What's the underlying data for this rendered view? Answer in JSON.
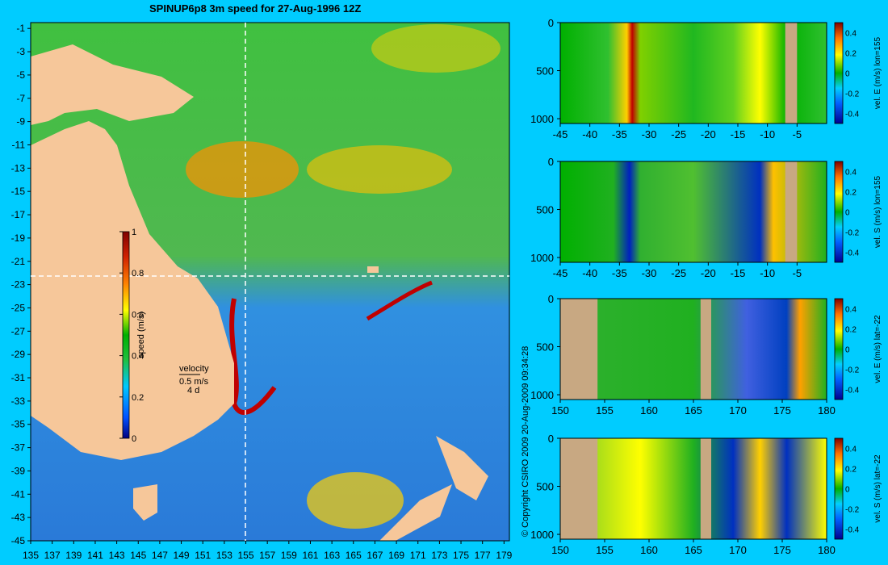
{
  "title": "SPINUP6p8 3m speed for 27-Aug-1996 12Z",
  "copyright": "© Copyright CSIRO 2009   20-Aug-2009 09:34:28",
  "map": {
    "lon_ticks": [
      "135",
      "137",
      "139",
      "141",
      "143",
      "145",
      "147",
      "149",
      "151",
      "153",
      "155",
      "157",
      "159",
      "161",
      "163",
      "165",
      "167",
      "169",
      "171",
      "173",
      "175",
      "177",
      "179"
    ],
    "lat_ticks": [
      "-1",
      "-3",
      "-5",
      "-7",
      "-9",
      "-11",
      "-13",
      "-15",
      "-17",
      "-19",
      "-21",
      "-23",
      "-25",
      "-27",
      "-29",
      "-31",
      "-33",
      "-35",
      "-37",
      "-39",
      "-41",
      "-43",
      "-45"
    ],
    "crosshair_lon": 155,
    "crosshair_lat": -22,
    "colorbar": {
      "label": "speed (m/s)",
      "ticks": [
        "1",
        "0.8",
        "0.6",
        "0.4",
        "0.2",
        "0"
      ],
      "range": [
        0,
        1
      ]
    },
    "velocity_legend": {
      "title": "velocity",
      "speed": "0.5 m/s",
      "period": "4 d"
    },
    "colors": {
      "land": "#f6c79a",
      "background": "#00ccff"
    }
  },
  "panels": [
    {
      "label": "vel. E (m/s) lon=155",
      "x_ticks": [
        "-45",
        "-40",
        "-35",
        "-30",
        "-25",
        "-20",
        "-15",
        "-10",
        "-5"
      ],
      "y_ticks": [
        "0",
        "500",
        "1000"
      ],
      "cbar_ticks": [
        "0.4",
        "0.2",
        "0",
        "-0.2",
        "-0.4"
      ]
    },
    {
      "label": "vel. S (m/s) lon=155",
      "x_ticks": [
        "-45",
        "-40",
        "-35",
        "-30",
        "-25",
        "-20",
        "-15",
        "-10",
        "-5"
      ],
      "y_ticks": [
        "0",
        "500",
        "1000"
      ],
      "cbar_ticks": [
        "0.4",
        "0.2",
        "0",
        "-0.2",
        "-0.4"
      ]
    },
    {
      "label": "vel. E (m/s) lat=-22",
      "x_ticks": [
        "150",
        "155",
        "160",
        "165",
        "170",
        "175",
        "180"
      ],
      "y_ticks": [
        "0",
        "500",
        "1000"
      ],
      "cbar_ticks": [
        "0.4",
        "0.2",
        "0",
        "-0.2",
        "-0.4"
      ]
    },
    {
      "label": "vel. S (m/s) lat=-22",
      "x_ticks": [
        "150",
        "155",
        "160",
        "165",
        "170",
        "175",
        "180"
      ],
      "y_ticks": [
        "0",
        "500",
        "1000"
      ],
      "cbar_ticks": [
        "0.4",
        "0.2",
        "0",
        "-0.2",
        "-0.4"
      ]
    }
  ]
}
